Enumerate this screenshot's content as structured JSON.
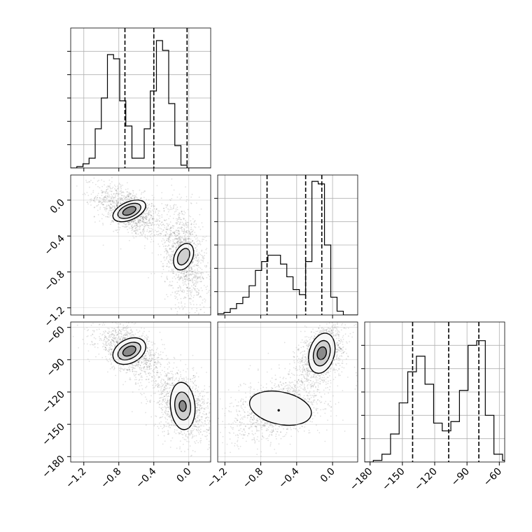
{
  "chart_data": {
    "type": "corner",
    "grid": true,
    "parameters": [
      {
        "range": [
          -1.35,
          0.25
        ],
        "ticks": [
          -1.2,
          -0.8,
          -0.4,
          0.0
        ],
        "tick_labels": [
          "−1.2",
          "−0.8",
          "−0.4",
          "0.0"
        ],
        "quantiles": [
          -0.73,
          -0.4,
          -0.02
        ],
        "histogram": {
          "bin_edges": [
            -1.35,
            -1.28,
            -1.21,
            -1.14,
            -1.07,
            -1.0,
            -0.93,
            -0.86,
            -0.79,
            -0.72,
            -0.65,
            -0.58,
            -0.51,
            -0.44,
            -0.37,
            -0.3,
            -0.23,
            -0.16,
            -0.09,
            -0.02,
            0.05,
            0.12,
            0.19,
            0.25
          ],
          "counts": [
            0,
            0.01,
            0.03,
            0.07,
            0.28,
            0.5,
            0.81,
            0.78,
            0.48,
            0.3,
            0.07,
            0.07,
            0.28,
            0.55,
            0.91,
            0.84,
            0.46,
            0.16,
            0.02,
            0,
            0,
            0,
            0
          ],
          "ylim": [
            0,
            1.0
          ]
        }
      },
      {
        "range": [
          -1.28,
          0.28
        ],
        "ticks": [
          -1.2,
          -0.8,
          -0.4,
          0.0
        ],
        "tick_labels": [
          "−1.2",
          "−0.8",
          "−0.4",
          "0.0"
        ],
        "quantiles": [
          -0.73,
          -0.3,
          -0.12
        ],
        "histogram": {
          "bin_edges": [
            -1.28,
            -1.21,
            -1.14,
            -1.07,
            -1.0,
            -0.93,
            -0.86,
            -0.79,
            -0.72,
            -0.65,
            -0.58,
            -0.51,
            -0.44,
            -0.37,
            -0.3,
            -0.23,
            -0.16,
            -0.09,
            -0.02,
            0.05,
            0.12,
            0.19,
            0.28
          ],
          "counts": [
            0.01,
            0.02,
            0.05,
            0.09,
            0.14,
            0.23,
            0.35,
            0.42,
            0.47,
            0.47,
            0.4,
            0.3,
            0.2,
            0.16,
            0.42,
            1.05,
            1.03,
            0.55,
            0.14,
            0.03,
            0,
            0
          ],
          "ylim": [
            0,
            1.1
          ]
        }
      },
      {
        "range": [
          -185,
          -55
        ],
        "ticks": [
          -180,
          -150,
          -120,
          -90,
          -60
        ],
        "tick_labels": [
          "−180",
          "−150",
          "−120",
          "−90",
          "−60"
        ],
        "quantiles": [
          -140.5,
          -107,
          -79
        ],
        "histogram": {
          "bin_edges": [
            -185,
            -177,
            -169,
            -161,
            -153,
            -145,
            -137,
            -129,
            -121,
            -113,
            -105,
            -97,
            -89,
            -81,
            -73,
            -65,
            -57,
            -55
          ],
          "counts": [
            0,
            0.01,
            0.05,
            0.18,
            0.38,
            0.58,
            0.68,
            0.5,
            0.25,
            0.2,
            0.26,
            0.46,
            0.75,
            0.78,
            0.3,
            0.05,
            0.01
          ],
          "ylim": [
            0,
            0.9
          ]
        }
      }
    ],
    "pairs": [
      {
        "x": 0,
        "y": 1,
        "modes": [
          {
            "cx": -0.68,
            "cy": -0.12,
            "sx": 0.12,
            "sy": 0.09,
            "rho": -0.55,
            "weight": 0.5
          },
          {
            "cx": -0.05,
            "cy": -0.62,
            "sx": 0.08,
            "sy": 0.18,
            "rho": -0.35,
            "weight": 0.5
          }
        ],
        "contours": [
          {
            "cx": -0.68,
            "cy": -0.12,
            "rx": 0.2,
            "ry": 0.1,
            "angle_deg": -24
          },
          {
            "cx": -0.68,
            "cy": -0.12,
            "rx": 0.14,
            "ry": 0.07,
            "angle_deg": -24
          },
          {
            "cx": -0.68,
            "cy": -0.12,
            "rx": 0.08,
            "ry": 0.04,
            "angle_deg": -24
          },
          {
            "cx": -0.06,
            "cy": -0.63,
            "rx": 0.16,
            "ry": 0.1,
            "angle_deg": -65
          },
          {
            "cx": -0.06,
            "cy": -0.63,
            "rx": 0.1,
            "ry": 0.06,
            "angle_deg": -65
          }
        ]
      },
      {
        "x": 0,
        "y": 2,
        "modes": [
          {
            "cx": -0.68,
            "cy": -82,
            "sx": 0.12,
            "sy": 8,
            "rho": -0.55,
            "weight": 0.5
          },
          {
            "cx": -0.07,
            "cy": -133,
            "sx": 0.1,
            "sy": 10,
            "rho": -0.3,
            "weight": 0.5
          }
        ],
        "contours": [
          {
            "cx": -0.68,
            "cy": -82,
            "rx": 0.2,
            "ry": 11,
            "angle_deg": -28
          },
          {
            "cx": -0.68,
            "cy": -82,
            "rx": 0.14,
            "ry": 7,
            "angle_deg": -28
          },
          {
            "cx": -0.68,
            "cy": -82,
            "rx": 0.08,
            "ry": 4,
            "angle_deg": -28
          },
          {
            "cx": -0.07,
            "cy": -133,
            "rx": 0.14,
            "ry": 22,
            "angle_deg": -5
          },
          {
            "cx": -0.07,
            "cy": -133,
            "rx": 0.09,
            "ry": 13,
            "angle_deg": -5
          },
          {
            "cx": -0.07,
            "cy": -133,
            "rx": 0.04,
            "ry": 5,
            "angle_deg": -5
          }
        ]
      },
      {
        "x": 1,
        "y": 2,
        "modes": [
          {
            "cx": -0.12,
            "cy": -84,
            "sx": 0.08,
            "sy": 9,
            "rho": 0.4,
            "weight": 0.5
          },
          {
            "cx": -0.6,
            "cy": -135,
            "sx": 0.17,
            "sy": 10,
            "rho": 0.45,
            "weight": 0.5
          }
        ],
        "contours": [
          {
            "cx": -0.12,
            "cy": -84,
            "rx": 0.14,
            "ry": 19,
            "angle_deg": 15
          },
          {
            "cx": -0.12,
            "cy": -84,
            "rx": 0.09,
            "ry": 12,
            "angle_deg": 15
          },
          {
            "cx": -0.12,
            "cy": -84,
            "rx": 0.05,
            "ry": 6,
            "angle_deg": 15
          },
          {
            "cx": -0.58,
            "cy": -135,
            "rx": 0.35,
            "ry": 15,
            "angle_deg": 12
          },
          {
            "cx": -0.6,
            "cy": -137,
            "rx": 0.005,
            "ry": 0.5,
            "angle_deg": 0
          }
        ]
      }
    ]
  }
}
